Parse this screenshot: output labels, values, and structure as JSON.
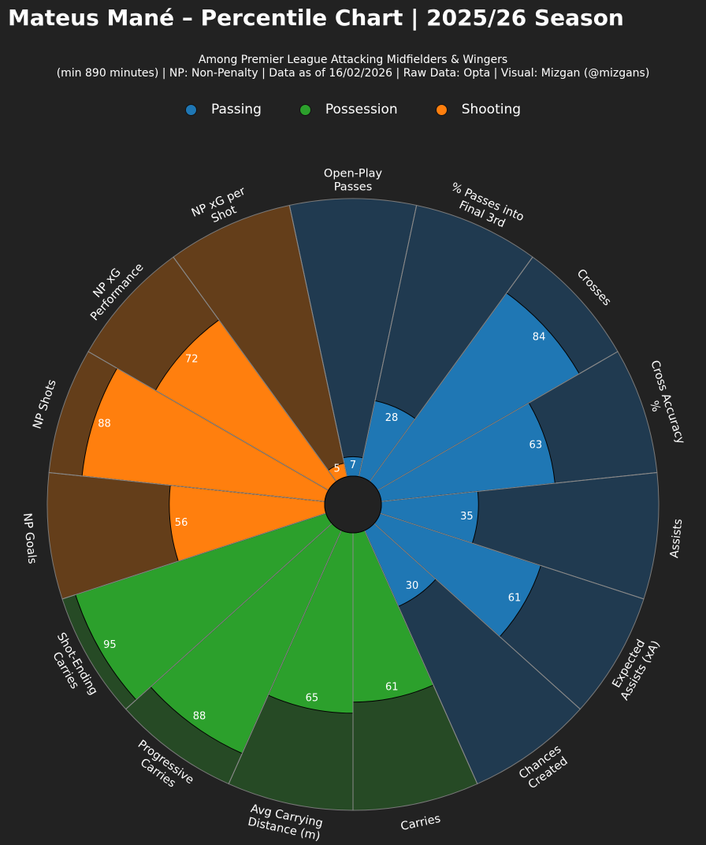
{
  "title": "Mateus Mané – Percentile Chart | 2025/26 Season",
  "subtitle_line1": "Among Premier League Attacking Midfielders & Wingers",
  "subtitle_line2": "(min 890 minutes) | NP: Non-Penalty | Data as of 16/02/2026 | Raw Data: Opta | Visual: Mizgan (@mizgans)",
  "legend": [
    {
      "label": "Passing",
      "color": "#1f77b4"
    },
    {
      "label": "Possession",
      "color": "#2ca02c"
    },
    {
      "label": "Shooting",
      "color": "#ff7f0e"
    }
  ],
  "colors": {
    "background": "#222222",
    "passing_bg": "#203a50",
    "possession_bg": "#264a25",
    "shooting_bg": "#643e1a"
  },
  "chart_data": {
    "type": "polar-bar",
    "title": "Mateus Mané – Percentile Chart | 2025/26 Season",
    "rmax": 100,
    "categories": [
      "Open-Play\nPasses",
      "% Passes into\nFinal 3rd",
      "Crosses",
      "Cross Accuracy\n%",
      "Assists",
      "Expected\nAssists (xA)",
      "Chances\nCreated",
      "Carries",
      "Avg Carrying\nDistance (m)",
      "Progressive\nCarries",
      "Shot-Ending\nCarries",
      "NP Goals",
      "NP Shots",
      "NP xG\nPerformance",
      "NP xG per\nShot"
    ],
    "values": [
      7,
      28,
      84,
      63,
      35,
      61,
      30,
      61,
      65,
      88,
      95,
      56,
      88,
      72,
      5
    ],
    "groups": [
      "Passing",
      "Passing",
      "Passing",
      "Passing",
      "Passing",
      "Passing",
      "Passing",
      "Possession",
      "Possession",
      "Possession",
      "Possession",
      "Shooting",
      "Shooting",
      "Shooting",
      "Shooting"
    ]
  }
}
